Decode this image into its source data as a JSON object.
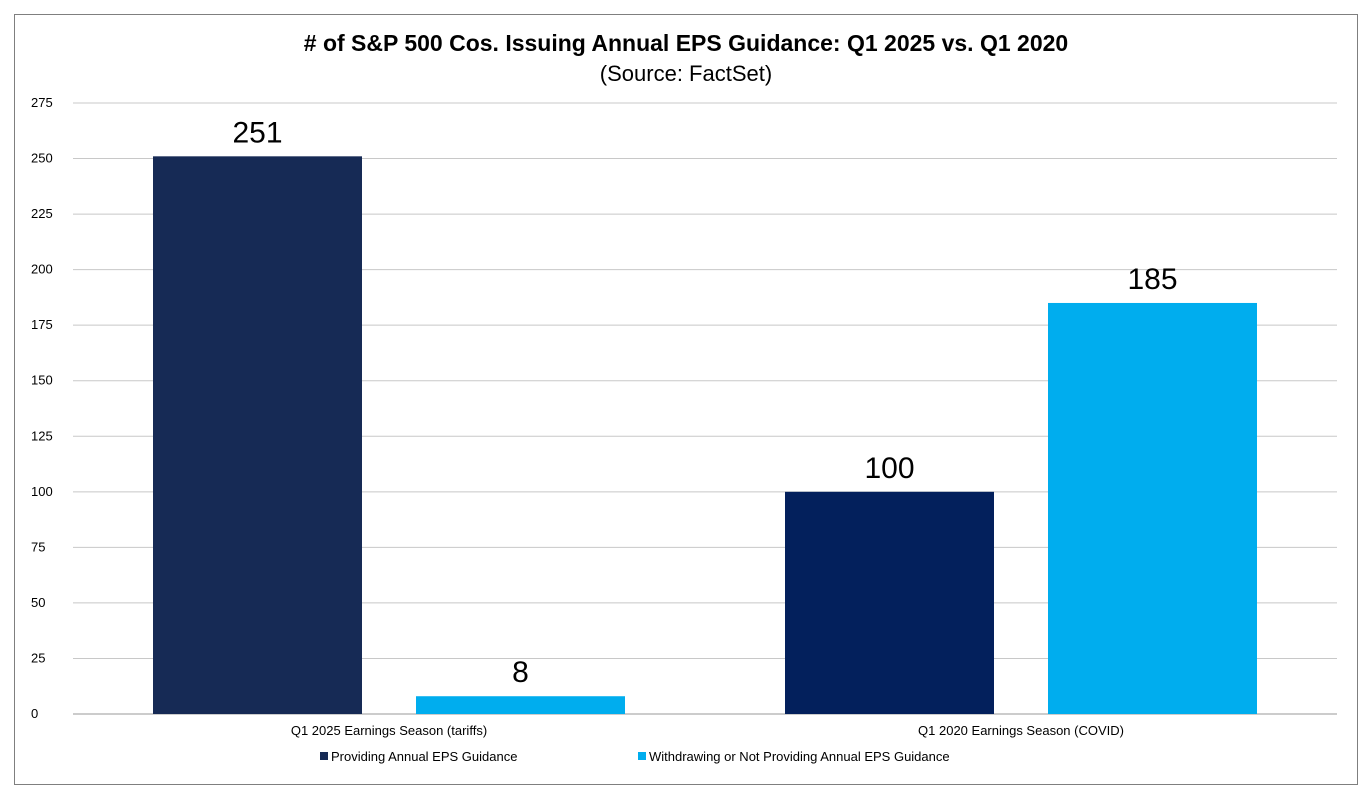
{
  "chart_data": {
    "type": "bar",
    "title": "# of S&P 500 Cos. Issuing Annual EPS Guidance: Q1 2025 vs. Q1 2020",
    "subtitle": "(Source: FactSet)",
    "xlabel": "",
    "ylabel": "",
    "categories": [
      "Q1 2025 Earnings Season (tariffs)",
      "Q1 2020 Earnings Season (COVID)"
    ],
    "series": [
      {
        "name": "Providing Annual EPS Guidance",
        "values": [
          251,
          100
        ],
        "colors": [
          "#162a55",
          "#03205c"
        ]
      },
      {
        "name": "Withdrawing or Not Providing Annual EPS Guidance",
        "values": [
          8,
          185
        ],
        "colors": [
          "#00adee",
          "#00adee"
        ]
      }
    ],
    "ylim": [
      0,
      275
    ],
    "yticks": [
      0,
      25,
      50,
      75,
      100,
      125,
      150,
      175,
      200,
      225,
      250,
      275
    ],
    "grid": true,
    "legend_position": "bottom",
    "data_labels": true
  }
}
